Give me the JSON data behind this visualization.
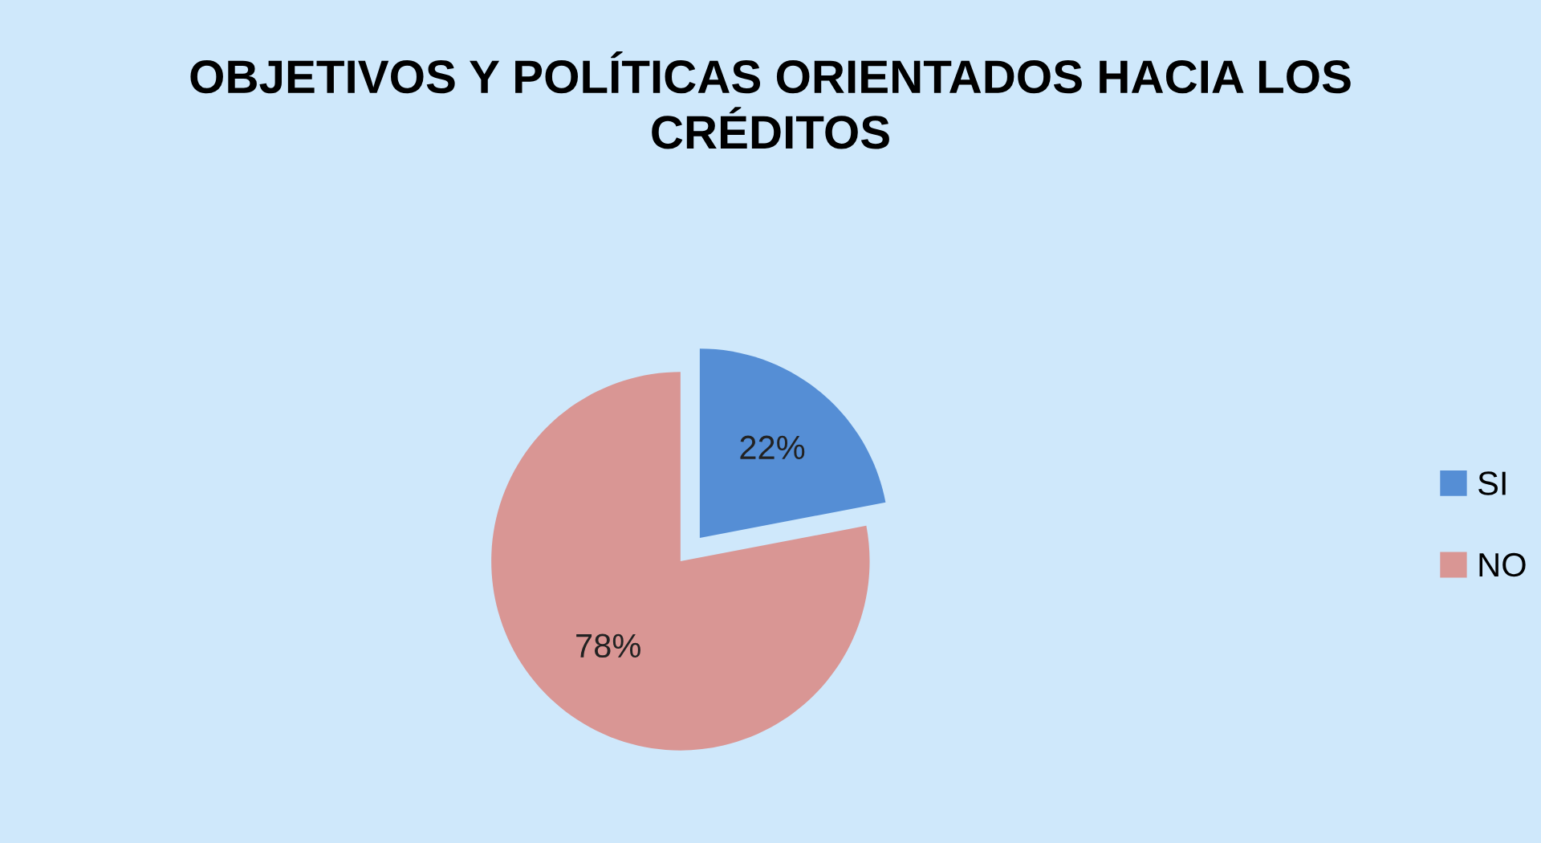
{
  "chart_data": {
    "type": "pie",
    "title": "OBJETIVOS Y POLÍTICAS ORIENTADOS HACIA LOS CRÉDITOS",
    "categories": [
      "SI",
      "NO"
    ],
    "values": [
      22,
      78
    ],
    "colors": [
      "#558ed5",
      "#d99694"
    ],
    "value_labels": [
      "22%",
      "78%"
    ],
    "legend": "right"
  }
}
